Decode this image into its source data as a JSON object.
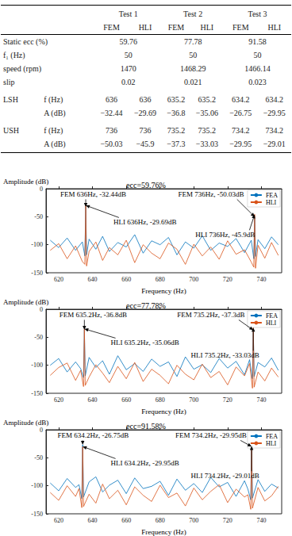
{
  "table": {
    "groups": [
      "Test 1",
      "Test 2",
      "Test 3"
    ],
    "subheaders": [
      "FEM",
      "HLI"
    ],
    "rows": [
      {
        "label": "Static ecc (%)",
        "values": [
          "59.76",
          "77.78",
          "91.58"
        ]
      },
      {
        "label": "f₁ (Hz)",
        "values": [
          "50",
          "50",
          "50"
        ]
      },
      {
        "label": "speed (rpm)",
        "values": [
          "1470",
          "1468.29",
          "1466.14"
        ]
      },
      {
        "label": "slip",
        "values": [
          "0.02",
          "0.021",
          "0.023"
        ]
      },
      {
        "group": "LSH",
        "label": "f (Hz)",
        "values": [
          "636",
          "636",
          "635.2",
          "635.2",
          "634.2",
          "634.2"
        ]
      },
      {
        "label": "A (dB)",
        "values": [
          "−32.44",
          "−29.69",
          "−36.8",
          "−35.06",
          "−26.75",
          "−29.95"
        ]
      },
      {
        "group": "USH",
        "label": "f (Hz)",
        "values": [
          "736",
          "736",
          "735.2",
          "735.2",
          "734.2",
          "734.2"
        ]
      },
      {
        "label": "A (dB)",
        "values": [
          "−50.03",
          "−45.9",
          "−37.3",
          "−33.03",
          "−29.95",
          "−29.01"
        ]
      }
    ]
  },
  "chart_data": [
    {
      "type": "line",
      "title": "ecc=59.76%",
      "x_label": "Frequency (Hz)",
      "y_label": "Amplitude (dB)",
      "x": [
        615,
        620,
        625,
        630,
        634,
        635.5,
        636,
        636.5,
        638,
        642,
        646,
        650,
        655,
        660,
        665,
        670,
        675,
        680,
        685,
        690,
        695,
        700,
        705,
        710,
        715,
        720,
        725,
        730,
        734,
        735.5,
        736,
        736.5,
        738,
        742,
        746,
        750
      ],
      "series": [
        {
          "name": "FEA",
          "color": "#0072bd",
          "values": [
            -92,
            -105,
            -88,
            -110,
            -95,
            -120,
            -32.44,
            -118,
            -90,
            -108,
            -85,
            -112,
            -96,
            -104,
            -82,
            -115,
            -93,
            -100,
            -87,
            -118,
            -95,
            -106,
            -84,
            -110,
            -97,
            -103,
            -89,
            -114,
            -92,
            -125,
            -50.03,
            -121,
            -91,
            -107,
            -86,
            -100
          ]
        },
        {
          "name": "HLI",
          "color": "#d95319",
          "values": [
            -110,
            -98,
            -125,
            -102,
            -130,
            -135,
            -29.69,
            -138,
            -112,
            -95,
            -128,
            -105,
            -118,
            -92,
            -132,
            -100,
            -115,
            -125,
            -97,
            -108,
            -135,
            -99,
            -120,
            -104,
            -126,
            -93,
            -117,
            -109,
            -131,
            -140,
            -45.9,
            -142,
            -101,
            -124,
            -96,
            -119
          ]
        }
      ],
      "xlim": [
        612.5,
        752
      ],
      "xticks": [
        620,
        640,
        660,
        680,
        700,
        720,
        740
      ],
      "ylim": [
        -150,
        0
      ],
      "yticks": [
        -150,
        -100,
        -50,
        0
      ],
      "grid": false,
      "legend": "upper right",
      "annotations": [
        {
          "text": "FEM 636Hz, -32.44dB",
          "x": 636,
          "y": -32.44
        },
        {
          "text": "HLI 636Hz, -29.69dB",
          "x": 636,
          "y": -29.69
        },
        {
          "text": "FEM 736Hz, -50.03dB",
          "x": 736,
          "y": -50.03
        },
        {
          "text": "HLI 736Hz, -45.9dB",
          "x": 736,
          "y": -45.9
        }
      ]
    },
    {
      "type": "line",
      "title": "ecc=77.78%",
      "x_label": "Frequency (Hz)",
      "y_label": "Amplitude (dB)",
      "x": [
        615,
        620,
        625,
        630,
        633,
        634.7,
        635.2,
        635.7,
        638,
        642,
        646,
        650,
        655,
        660,
        665,
        670,
        675,
        680,
        685,
        690,
        695,
        700,
        705,
        710,
        715,
        720,
        725,
        730,
        733,
        734.7,
        735.2,
        735.7,
        738,
        742,
        746,
        750
      ],
      "series": [
        {
          "name": "FEA",
          "color": "#0072bd",
          "values": [
            -100,
            -88,
            -112,
            -94,
            -106,
            -122,
            -36.8,
            -119,
            -86,
            -104,
            -92,
            -116,
            -83,
            -108,
            -97,
            -111,
            -89,
            -102,
            -94,
            -120,
            -85,
            -107,
            -99,
            -113,
            -88,
            -105,
            -93,
            -117,
            -90,
            -124,
            -37.3,
            -120,
            -95,
            -103,
            -87,
            -109
          ]
        },
        {
          "name": "HLI",
          "color": "#d95319",
          "values": [
            -118,
            -104,
            -96,
            -127,
            -109,
            -138,
            -35.06,
            -136,
            -121,
            -99,
            -114,
            -131,
            -102,
            -124,
            -95,
            -129,
            -107,
            -118,
            -133,
            -100,
            -116,
            -126,
            -98,
            -122,
            -111,
            -135,
            -103,
            -119,
            -97,
            -141,
            -33.03,
            -139,
            -112,
            -128,
            -105,
            -121
          ]
        }
      ],
      "xlim": [
        612.5,
        752
      ],
      "xticks": [
        620,
        640,
        660,
        680,
        700,
        720,
        740
      ],
      "ylim": [
        -150,
        0
      ],
      "yticks": [
        -150,
        -100,
        -50,
        0
      ],
      "grid": false,
      "legend": "upper right",
      "annotations": [
        {
          "text": "FEM 635.2Hz, -36.8dB",
          "x": 635.2,
          "y": -36.8
        },
        {
          "text": "HLI 635.2Hz, -35.06dB",
          "x": 635.2,
          "y": -35.06
        },
        {
          "text": "FEM 735.2Hz, -37.3dB",
          "x": 735.2,
          "y": -37.3
        },
        {
          "text": "HLI 735.2Hz, -33.03dB",
          "x": 735.2,
          "y": -33.03
        }
      ]
    },
    {
      "type": "line",
      "title": "ecc=91.58%",
      "x_label": "Frequency (Hz)",
      "y_label": "Amplitude (dB)",
      "x": [
        615,
        620,
        625,
        630,
        632,
        633.7,
        634.2,
        634.7,
        638,
        642,
        646,
        650,
        655,
        660,
        665,
        670,
        675,
        680,
        685,
        690,
        695,
        700,
        705,
        710,
        715,
        720,
        725,
        730,
        732,
        733.7,
        734.2,
        734.7,
        738,
        742,
        746,
        750
      ],
      "series": [
        {
          "name": "FEA",
          "color": "#0072bd",
          "values": [
            -95,
            -109,
            -87,
            -103,
            -98,
            -123,
            -26.75,
            -120,
            -93,
            -84,
            -111,
            -99,
            -90,
            -114,
            -86,
            -105,
            -101,
            -92,
            -117,
            -88,
            -108,
            -96,
            -112,
            -85,
            -102,
            -94,
            -119,
            -91,
            -106,
            -125,
            -29.95,
            -122,
            -89,
            -110,
            -97,
            -104
          ]
        },
        {
          "name": "HLI",
          "color": "#d95319",
          "values": [
            -112,
            -126,
            -100,
            -119,
            -105,
            -139,
            -29.95,
            -137,
            -115,
            -131,
            -97,
            -123,
            -108,
            -134,
            -102,
            -117,
            -128,
            -99,
            -121,
            -113,
            -136,
            -104,
            -125,
            -110,
            -98,
            -130,
            -106,
            -120,
            -116,
            -142,
            -29.01,
            -140,
            -103,
            -127,
            -118,
            -101
          ]
        }
      ],
      "xlim": [
        612.5,
        752
      ],
      "xticks": [
        620,
        640,
        660,
        680,
        700,
        720,
        740
      ],
      "ylim": [
        -150,
        0
      ],
      "yticks": [
        -150,
        -100,
        -50,
        0
      ],
      "grid": false,
      "legend": "upper right",
      "annotations": [
        {
          "text": "FEM 634.2Hz, -26.75dB",
          "x": 634.2,
          "y": -26.75
        },
        {
          "text": "HLI 634.2Hz, -29.95dB",
          "x": 634.2,
          "y": -29.95
        },
        {
          "text": "FEM 734.2Hz, -29.95dB",
          "x": 734.2,
          "y": -29.95
        },
        {
          "text": "HLI 734.2Hz, -29.01dB",
          "x": 734.2,
          "y": -29.01
        }
      ]
    }
  ]
}
